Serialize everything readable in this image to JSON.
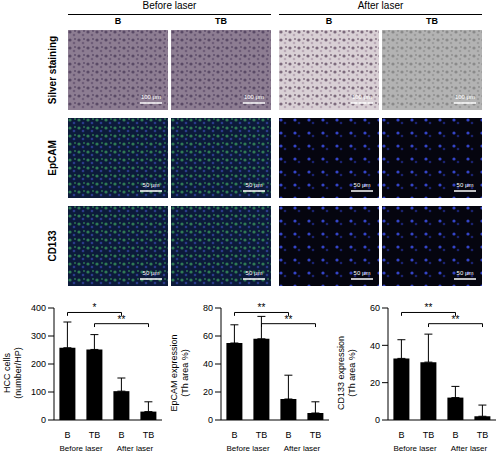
{
  "panels": {
    "groups": [
      "Before laser",
      "After laser"
    ],
    "columns": [
      "B",
      "TB",
      "B",
      "TB"
    ],
    "rows": [
      {
        "label": "Silver staining",
        "scale_bar": "100 μm"
      },
      {
        "label": "EpCAM",
        "scale_bar": "50 μm"
      },
      {
        "label": "CD133",
        "scale_bar": "50 μm"
      }
    ]
  },
  "chart_data": [
    {
      "type": "bar",
      "y_label": [
        "HCC cells",
        "(number/HP)"
      ],
      "categories": [
        "B",
        "TB",
        "B",
        "TB"
      ],
      "groups": [
        "Before laser",
        "After laser"
      ],
      "values": [
        258,
        252,
        103,
        30
      ],
      "errors": [
        92,
        53,
        47,
        35
      ],
      "color": "#000000",
      "ylim": [
        0,
        400
      ],
      "yticks": [
        0,
        100,
        200,
        300,
        400
      ],
      "significance": [
        {
          "from": 0,
          "to": 2,
          "label": "*"
        },
        {
          "from": 1,
          "to": 3,
          "label": "**"
        }
      ]
    },
    {
      "type": "bar",
      "y_label": [
        "EpCAM expression",
        "(Th area %)"
      ],
      "categories": [
        "B",
        "TB",
        "B",
        "TB"
      ],
      "groups": [
        "Before laser",
        "After laser"
      ],
      "values": [
        55,
        58,
        15,
        5
      ],
      "errors": [
        13,
        16,
        17,
        8
      ],
      "color": "#000000",
      "ylim": [
        0,
        80
      ],
      "yticks": [
        0,
        20,
        40,
        60,
        80
      ],
      "significance": [
        {
          "from": 0,
          "to": 2,
          "label": "**"
        },
        {
          "from": 1,
          "to": 3,
          "label": "**"
        }
      ]
    },
    {
      "type": "bar",
      "y_label": [
        "CD133 expression",
        "(Th area %)"
      ],
      "categories": [
        "B",
        "TB",
        "B",
        "TB"
      ],
      "groups": [
        "Before laser",
        "After laser"
      ],
      "values": [
        33,
        31,
        12,
        2
      ],
      "errors": [
        10,
        15,
        6,
        6
      ],
      "color": "#000000",
      "ylim": [
        0,
        60
      ],
      "yticks": [
        0,
        20,
        40,
        60
      ],
      "significance": [
        {
          "from": 0,
          "to": 2,
          "label": "**"
        },
        {
          "from": 1,
          "to": 3,
          "label": "**"
        }
      ]
    }
  ]
}
